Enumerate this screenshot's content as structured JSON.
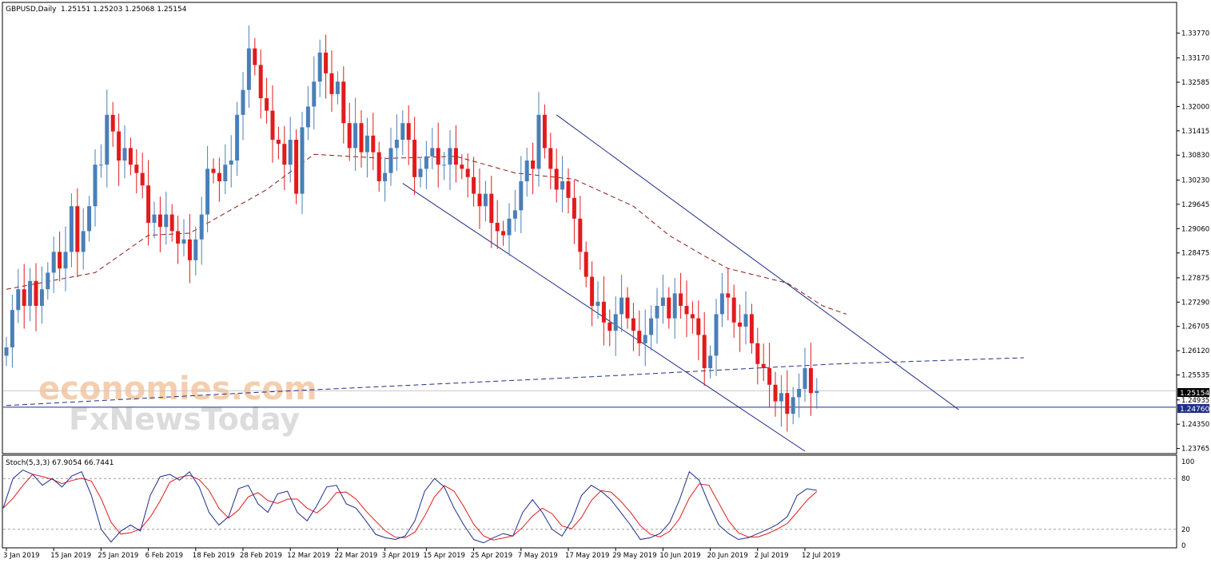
{
  "header": {
    "symbol": "GBPUSD,Daily",
    "ohlc": "1.25151 1.25203 1.25068 1.25154"
  },
  "indicator": {
    "label": "Stoch(5,3,3) 67.9054 66.7441",
    "levels": [
      "100",
      "80",
      "20",
      "0"
    ]
  },
  "watermark": {
    "line1": "economies.com",
    "line2": "FxNewsToday"
  },
  "colors": {
    "bull": "#4a7fb7",
    "bear": "#e31a1c",
    "line_blue": "#1f2d8a",
    "ma_red": "#8b1a1a",
    "stoch_main": "#1f2d8a",
    "stoch_signal": "#e31a1c"
  },
  "chart_data": {
    "type": "candlestick",
    "price_axis_ticks": [
      "1.33770",
      "1.33170",
      "1.32585",
      "1.32000",
      "1.31415",
      "1.30830",
      "1.30230",
      "1.29645",
      "1.29060",
      "1.28475",
      "1.27875",
      "1.27290",
      "1.26705",
      "1.26120",
      "1.25535",
      "1.24935",
      "1.24350",
      "1.23765"
    ],
    "current_price_label": "1.25154",
    "support_label": "1.24760",
    "x_axis_labels": [
      "3 Jan 2019",
      "15 Jan 2019",
      "25 Jan 2019",
      "6 Feb 2019",
      "18 Feb 2019",
      "28 Feb 2019",
      "12 Mar 2019",
      "22 Mar 2019",
      "3 Apr 2019",
      "15 Apr 2019",
      "25 Apr 2019",
      "7 May 2019",
      "17 May 2019",
      "29 May 2019",
      "10 Jun 2019",
      "20 Jun 2019",
      "2 Jul 2019",
      "12 Jul 2019"
    ],
    "ylim": [
      1.237,
      1.3395
    ],
    "closes": [
      1.262,
      1.271,
      1.276,
      1.272,
      1.278,
      1.272,
      1.276,
      1.28,
      1.285,
      1.281,
      1.285,
      1.296,
      1.285,
      1.29,
      1.296,
      1.306,
      1.306,
      1.318,
      1.314,
      1.307,
      1.31,
      1.306,
      1.304,
      1.301,
      1.292,
      1.294,
      1.291,
      1.294,
      1.29,
      1.287,
      1.288,
      1.283,
      1.288,
      1.294,
      1.305,
      1.304,
      1.302,
      1.306,
      1.307,
      1.318,
      1.324,
      1.334,
      1.33,
      1.322,
      1.319,
      1.312,
      1.311,
      1.306,
      1.312,
      1.299,
      1.315,
      1.32,
      1.326,
      1.333,
      1.328,
      1.323,
      1.326,
      1.316,
      1.31,
      1.316,
      1.309,
      1.313,
      1.309,
      1.302,
      1.304,
      1.31,
      1.312,
      1.316,
      1.312,
      1.303,
      1.305,
      1.308,
      1.31,
      1.306,
      1.306,
      1.31,
      1.306,
      1.305,
      1.303,
      1.299,
      1.296,
      1.299,
      1.292,
      1.29,
      1.289,
      1.293,
      1.295,
      1.302,
      1.307,
      1.305,
      1.318,
      1.31,
      1.305,
      1.3,
      1.302,
      1.298,
      1.293,
      1.285,
      1.279,
      1.272,
      1.273,
      1.268,
      1.266,
      1.27,
      1.274,
      1.269,
      1.266,
      1.263,
      1.265,
      1.269,
      1.272,
      1.274,
      1.269,
      1.275,
      1.272,
      1.27,
      1.269,
      1.265,
      1.257,
      1.26,
      1.27,
      1.275,
      1.274,
      1.268,
      1.267,
      1.27,
      1.263,
      1.258,
      1.257,
      1.253,
      1.249,
      1.251,
      1.246,
      1.25,
      1.252,
      1.257,
      1.251,
      1.2515
    ],
    "ma50_points": [
      [
        0,
        1.276
      ],
      [
        15,
        1.28
      ],
      [
        24,
        1.289
      ],
      [
        31,
        1.2895
      ],
      [
        44,
        1.3
      ],
      [
        52,
        1.3085
      ],
      [
        64,
        1.3075
      ],
      [
        76,
        1.308
      ],
      [
        86,
        1.304
      ],
      [
        96,
        1.3025
      ],
      [
        106,
        1.296
      ],
      [
        112,
        1.289
      ],
      [
        118,
        1.284
      ],
      [
        122,
        1.281
      ],
      [
        132,
        1.2775
      ],
      [
        138,
        1.272
      ],
      [
        142,
        1.27
      ]
    ],
    "ma200_points": [
      [
        0,
        1.248
      ],
      [
        40,
        1.251
      ],
      [
        70,
        1.253
      ],
      [
        100,
        1.255
      ],
      [
        120,
        1.2565
      ],
      [
        140,
        1.258
      ],
      [
        172,
        1.2595
      ]
    ],
    "support_level": 1.2476,
    "channel_upper": [
      [
        93,
        1.318
      ],
      [
        161,
        1.247
      ]
    ],
    "channel_lower": [
      [
        67,
        1.3015
      ],
      [
        135,
        1.237
      ]
    ],
    "stoch_k": [
      45,
      80,
      90,
      85,
      72,
      80,
      70,
      83,
      88,
      60,
      20,
      5,
      18,
      25,
      18,
      60,
      82,
      85,
      78,
      88,
      70,
      40,
      25,
      35,
      68,
      72,
      50,
      40,
      62,
      65,
      40,
      30,
      48,
      70,
      72,
      50,
      45,
      30,
      14,
      10,
      8,
      12,
      30,
      65,
      80,
      70,
      45,
      25,
      8,
      4,
      10,
      15,
      12,
      40,
      55,
      40,
      20,
      12,
      30,
      60,
      72,
      65,
      55,
      40,
      25,
      8,
      10,
      15,
      28,
      55,
      88,
      78,
      50,
      25,
      15,
      8,
      10,
      15,
      20,
      26,
      35,
      60,
      67.9,
      66
    ]
  }
}
